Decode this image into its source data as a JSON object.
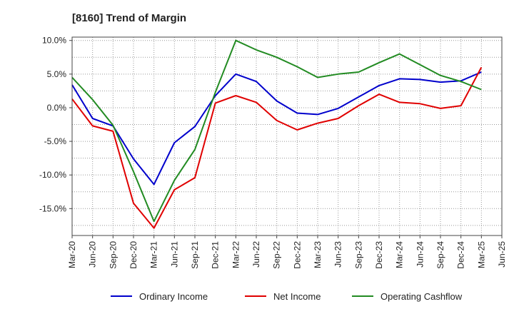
{
  "chart_data": {
    "type": "line",
    "title": "[8160]  Trend of Margin",
    "xlabel": "",
    "ylabel": "",
    "x": [
      "Mar-20",
      "Jun-20",
      "Sep-20",
      "Dec-20",
      "Mar-21",
      "Jun-21",
      "Sep-21",
      "Dec-21",
      "Mar-22",
      "Jun-22",
      "Sep-22",
      "Dec-22",
      "Mar-23",
      "Jun-23",
      "Sep-23",
      "Dec-23",
      "Mar-24",
      "Jun-24",
      "Sep-24",
      "Dec-24",
      "Mar-25",
      "Jun-25"
    ],
    "x_tick_labels": [
      "Mar-20",
      "Jun-20",
      "Sep-20",
      "Dec-20",
      "Mar-21",
      "Jun-21",
      "Sep-21",
      "Dec-21",
      "Mar-22",
      "Jun-22",
      "Sep-22",
      "Dec-22",
      "Mar-23",
      "Jun-23",
      "Sep-23",
      "Dec-23",
      "Mar-24",
      "Jun-24",
      "Sep-24",
      "Dec-24",
      "Mar-25",
      "Jun-25"
    ],
    "ylim": [
      -19,
      10.5
    ],
    "y_ticks": [
      10,
      5,
      0,
      -5,
      -10,
      -15
    ],
    "y_tick_labels": [
      "10.0%",
      "5.0%",
      "0.0%",
      "-5.0%",
      "-10.0%",
      "-15.0%"
    ],
    "grid": true,
    "legend_position": "bottom",
    "series": [
      {
        "name": "Ordinary Income",
        "color": "#0000cc",
        "values": [
          3.4,
          -1.6,
          -2.7,
          -7.6,
          -11.4,
          -5.2,
          -2.8,
          1.8,
          5.0,
          3.9,
          1.0,
          -0.8,
          -1.0,
          -0.1,
          1.6,
          3.3,
          4.3,
          4.2,
          3.8,
          4.0,
          5.3,
          null
        ]
      },
      {
        "name": "Net Income",
        "color": "#e00000",
        "values": [
          1.3,
          -2.7,
          -3.5,
          -14.2,
          -17.9,
          -12.2,
          -10.4,
          0.7,
          1.8,
          0.8,
          -1.9,
          -3.3,
          -2.3,
          -1.6,
          0.3,
          2.0,
          0.8,
          0.6,
          -0.1,
          0.3,
          6.0,
          null
        ]
      },
      {
        "name": "Operating Cashflow",
        "color": "#228b22",
        "values": [
          4.5,
          1.2,
          -2.6,
          -9.5,
          -16.9,
          -10.8,
          -6.2,
          2.3,
          10.0,
          8.6,
          7.5,
          6.1,
          4.5,
          5.0,
          5.3,
          6.7,
          8.0,
          6.4,
          4.8,
          3.9,
          2.7,
          null
        ]
      }
    ]
  }
}
